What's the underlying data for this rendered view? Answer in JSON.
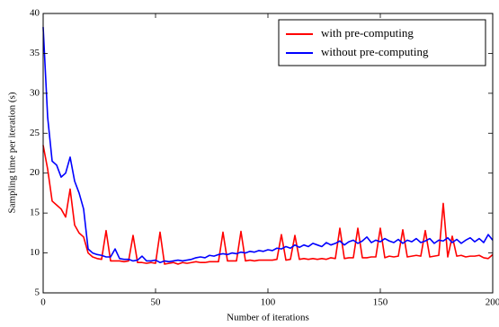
{
  "chart_data": {
    "type": "line",
    "xlabel": "Number of iterations",
    "ylabel": "Sampling time per iteration (s)",
    "x": [
      0,
      2,
      4,
      6,
      8,
      10,
      12,
      14,
      16,
      18,
      20,
      22,
      24,
      26,
      28,
      30,
      32,
      34,
      36,
      38,
      40,
      42,
      44,
      46,
      48,
      50,
      52,
      54,
      56,
      58,
      60,
      62,
      64,
      66,
      68,
      70,
      72,
      74,
      76,
      78,
      80,
      82,
      84,
      86,
      88,
      90,
      92,
      94,
      96,
      98,
      100,
      102,
      104,
      106,
      108,
      110,
      112,
      114,
      116,
      118,
      120,
      122,
      124,
      126,
      128,
      130,
      132,
      134,
      136,
      138,
      140,
      142,
      144,
      146,
      148,
      150,
      152,
      154,
      156,
      158,
      160,
      162,
      164,
      166,
      168,
      170,
      172,
      174,
      176,
      178,
      180,
      182,
      184,
      186,
      188,
      190,
      192,
      194,
      196,
      198,
      200
    ],
    "series": [
      {
        "name": "with pre-computing",
        "color": "#ff0000",
        "values": [
          23.5,
          20.5,
          16.5,
          16,
          15.5,
          14.5,
          18,
          13.5,
          12.5,
          12,
          10,
          9.5,
          9.3,
          9.2,
          12.8,
          9,
          9,
          9,
          8.9,
          9,
          12.2,
          8.8,
          8.8,
          8.7,
          8.8,
          8.7,
          12.6,
          8.6,
          8.7,
          8.8,
          8.6,
          8.8,
          8.7,
          8.8,
          8.9,
          8.8,
          8.8,
          8.9,
          8.9,
          8.9,
          12.6,
          9,
          9,
          9,
          12.7,
          9,
          9.1,
          9,
          9.1,
          9.1,
          9.1,
          9.1,
          9.2,
          12.3,
          9.1,
          9.2,
          12.2,
          9.2,
          9.3,
          9.2,
          9.3,
          9.2,
          9.3,
          9.2,
          9.4,
          9.3,
          13.1,
          9.3,
          9.4,
          9.4,
          13.1,
          9.4,
          9.4,
          9.5,
          9.5,
          13.1,
          9.4,
          9.6,
          9.5,
          9.6,
          12.9,
          9.5,
          9.6,
          9.7,
          9.6,
          12.8,
          9.5,
          9.6,
          9.7,
          16.2,
          9.5,
          12.1,
          9.6,
          9.7,
          9.5,
          9.6,
          9.6,
          9.7,
          9.4,
          9.3,
          9.8
        ]
      },
      {
        "name": "without pre-computing",
        "color": "#0000ff",
        "values": [
          38.3,
          27,
          21.5,
          21,
          19.5,
          20,
          22,
          19,
          17.5,
          15.5,
          10.5,
          10,
          9.8,
          9.7,
          9.5,
          9.5,
          10.5,
          9.3,
          9.2,
          9.2,
          9,
          9.1,
          9.6,
          9,
          9,
          9.1,
          8.8,
          9,
          8.9,
          9,
          9.1,
          9,
          9.1,
          9.2,
          9.4,
          9.5,
          9.4,
          9.7,
          9.6,
          9.8,
          9.9,
          9.8,
          10,
          9.9,
          10.1,
          10,
          10.2,
          10.1,
          10.3,
          10.2,
          10.4,
          10.3,
          10.6,
          10.5,
          10.8,
          10.6,
          11,
          10.7,
          11,
          10.8,
          11.2,
          11,
          10.8,
          11.3,
          11,
          11.2,
          11.5,
          11,
          11.4,
          11.6,
          11.2,
          11.5,
          12,
          11.3,
          11.6,
          11.4,
          11.8,
          11.5,
          11.3,
          11.7,
          11.2,
          11.6,
          11.4,
          11.8,
          11.3,
          11.5,
          11.8,
          11.2,
          11.6,
          11.5,
          11.9,
          11.3,
          11.7,
          11.2,
          11.6,
          11.9,
          11.4,
          11.8,
          11.3,
          12.3,
          11.6
        ]
      }
    ],
    "xlim": [
      0,
      200
    ],
    "xticks": [
      0,
      50,
      100,
      150,
      200
    ],
    "ylim": [
      5,
      40
    ],
    "yticks": [
      5,
      10,
      15,
      20,
      25,
      30,
      35,
      40
    ],
    "legend": "upper right"
  }
}
